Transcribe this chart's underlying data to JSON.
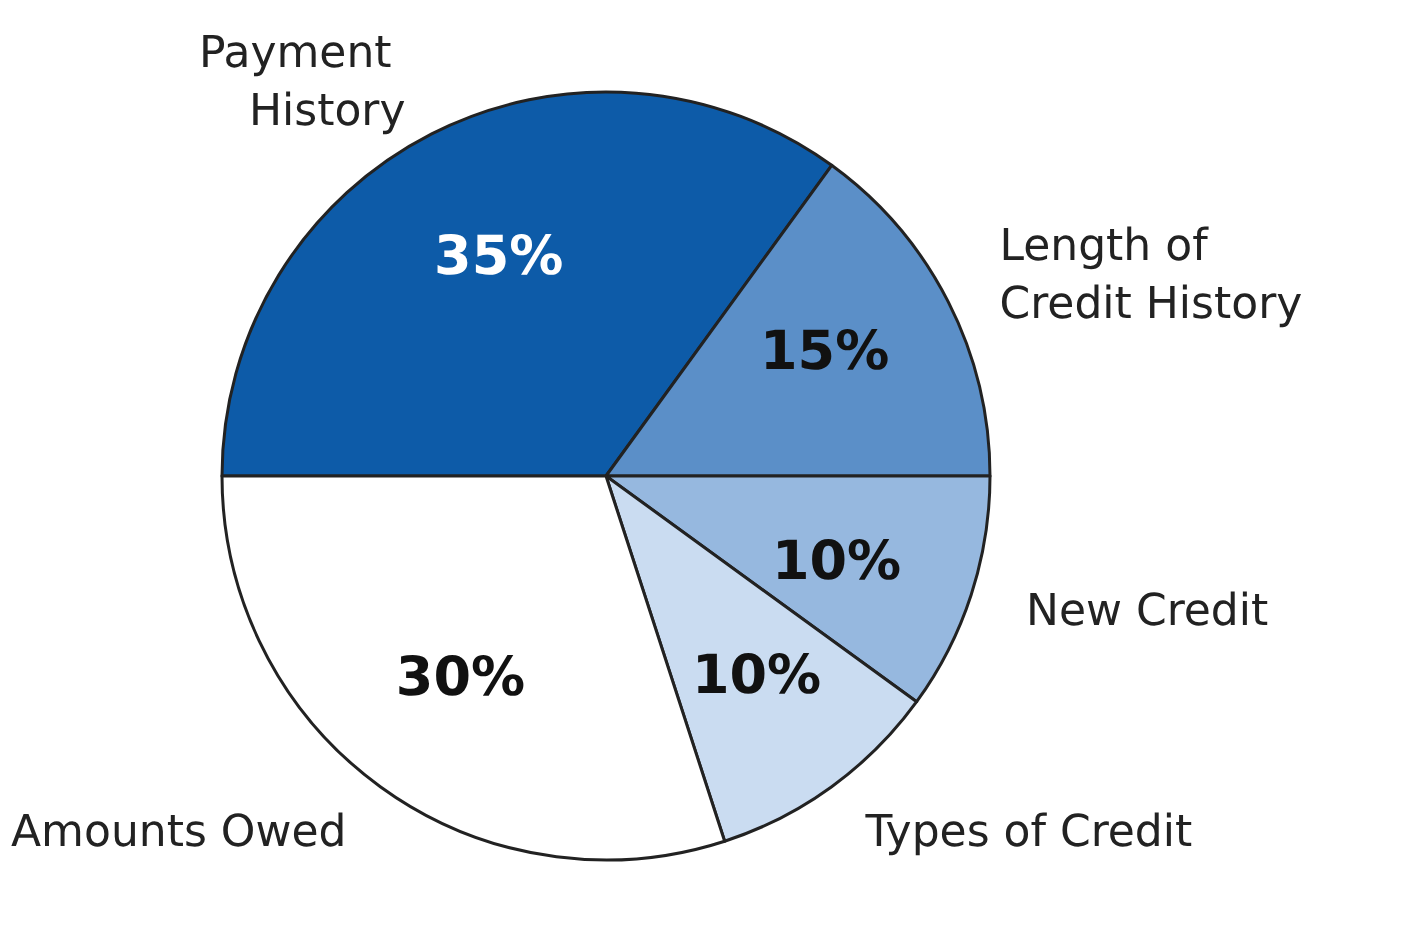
{
  "chart_data": {
    "type": "pie",
    "categories": [
      "Payment History",
      "Length of Credit History",
      "New Credit",
      "Types of Credit",
      "Amounts Owed"
    ],
    "values": [
      35,
      15,
      10,
      10,
      30
    ],
    "colors": [
      "#0d5ba8",
      "#5b8fc8",
      "#96b8df",
      "#cadcf1",
      "#ffffff"
    ],
    "value_labels": [
      "35%",
      "15%",
      "10%",
      "10%",
      "30%"
    ],
    "legend": false
  }
}
